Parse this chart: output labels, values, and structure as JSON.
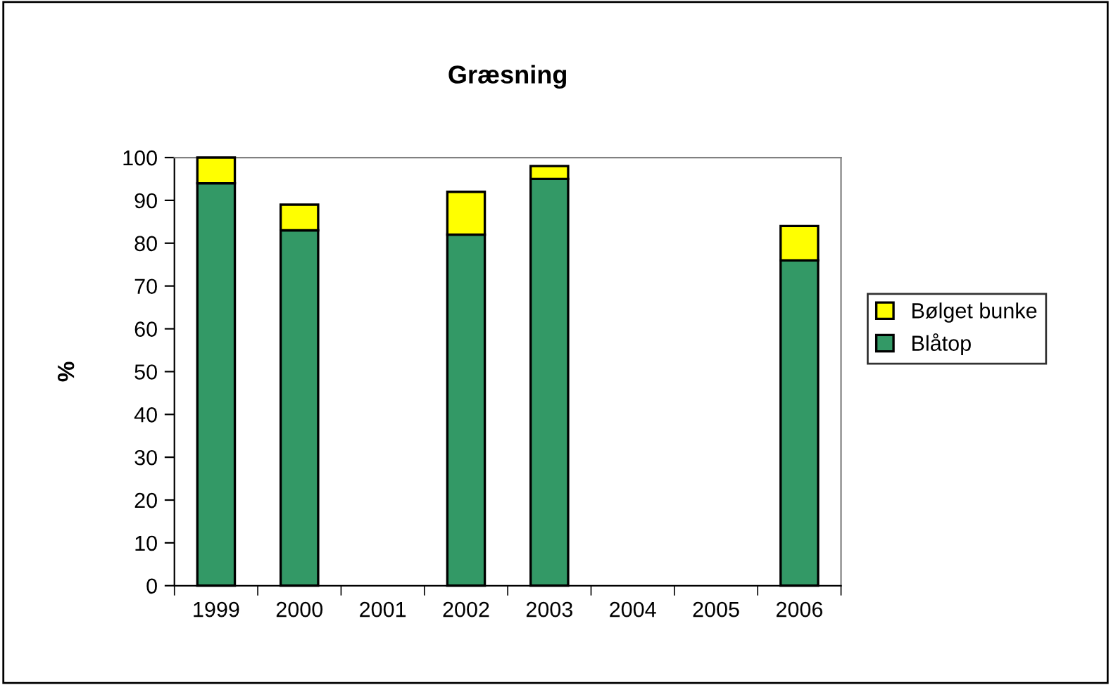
{
  "chart_data": {
    "type": "bar",
    "title": "Græsning",
    "ylabel": "%",
    "categories": [
      "1999",
      "2000",
      "2001",
      "2002",
      "2003",
      "2004",
      "2005",
      "2006"
    ],
    "stacked": true,
    "series": [
      {
        "name": "Blåtop",
        "color": "#339966",
        "values": [
          94,
          83,
          null,
          82,
          95,
          null,
          null,
          76
        ]
      },
      {
        "name": "Bølget bunke",
        "color": "#ffff00",
        "values": [
          6,
          6,
          null,
          10,
          3,
          null,
          null,
          8
        ]
      }
    ],
    "ylim": [
      0,
      100
    ],
    "yticks": [
      0,
      10,
      20,
      30,
      40,
      50,
      60,
      70,
      80,
      90,
      100
    ],
    "grid": false,
    "legend": "right"
  }
}
